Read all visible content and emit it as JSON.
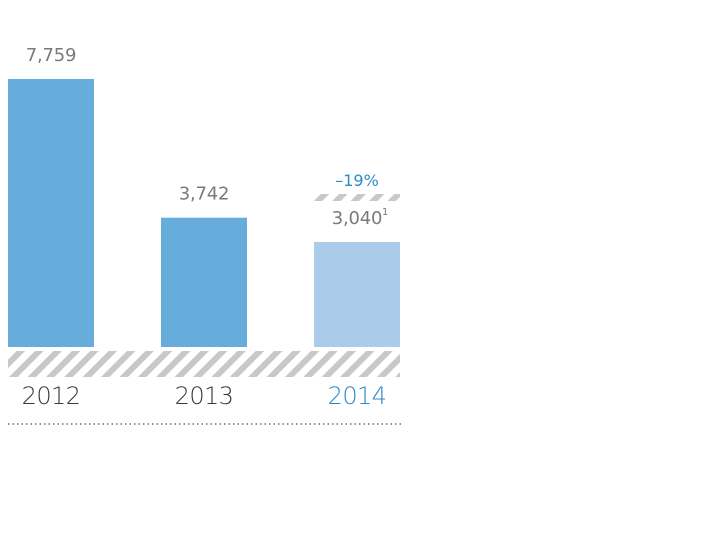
{
  "chart_data": {
    "type": "bar",
    "categories": [
      "2012",
      "2013",
      "2014"
    ],
    "values": [
      7759,
      3742,
      3040
    ],
    "value_labels": [
      "7,759",
      "3,742",
      "3,040"
    ],
    "footnote_marks": [
      "",
      "",
      "1"
    ],
    "highlight_category": "2014",
    "change_annotation": "–19%",
    "title": "",
    "xlabel": "",
    "ylabel": "",
    "ylim": [
      0,
      7759
    ],
    "grid": false,
    "legend": "none"
  },
  "colors": {
    "bar": "#66addb",
    "bar_highlight": "#aacbea",
    "accent": "#2b8ac8",
    "text": "#7a7a7a",
    "year_text": "#3a3a3a",
    "hatch": "#c8c8c8",
    "dots": "#555555"
  }
}
